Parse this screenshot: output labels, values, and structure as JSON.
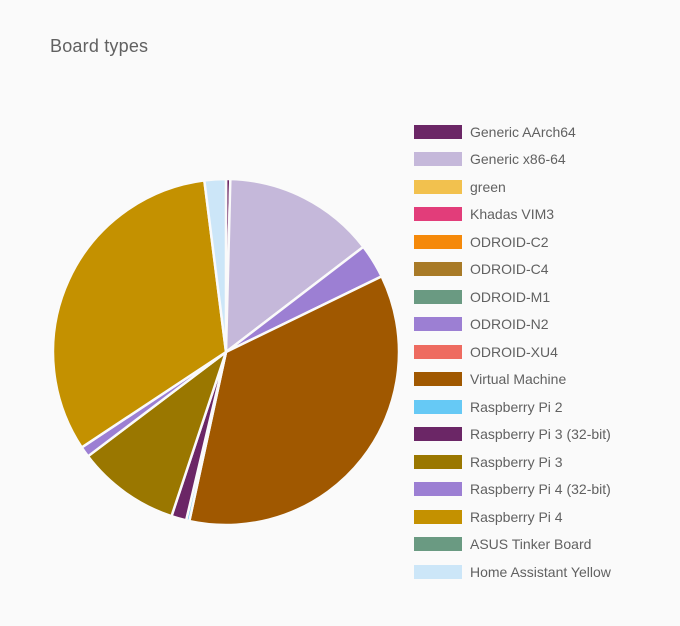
{
  "card": {
    "title": "Board types"
  },
  "chart_data": {
    "type": "pie",
    "title": "Board types",
    "legend_position": "right",
    "series": [
      {
        "name": "Generic AArch64",
        "value": 0.4,
        "color": "#6b2666"
      },
      {
        "name": "Generic x86-64",
        "value": 14.2,
        "color": "#c5b8da"
      },
      {
        "name": "green",
        "value": 0.0,
        "color": "#f2c14e"
      },
      {
        "name": "Khadas VIM3",
        "value": 0.0,
        "color": "#e23d7a"
      },
      {
        "name": "ODROID-C2",
        "value": 0.0,
        "color": "#f5890a"
      },
      {
        "name": "ODROID-C4",
        "value": 0.0,
        "color": "#a87a27"
      },
      {
        "name": "ODROID-M1",
        "value": 0.0,
        "color": "#6a9a82"
      },
      {
        "name": "ODROID-N2",
        "value": 3.2,
        "color": "#9c7fd3"
      },
      {
        "name": "ODROID-XU4",
        "value": 0.0,
        "color": "#ee6b60"
      },
      {
        "name": "Virtual Machine",
        "value": 35.6,
        "color": "#a05800"
      },
      {
        "name": "Raspberry Pi 2",
        "value": 0.3,
        "color": "#66c9f5"
      },
      {
        "name": "Raspberry Pi 3 (32-bit)",
        "value": 1.4,
        "color": "#6b2666"
      },
      {
        "name": "Raspberry Pi 3",
        "value": 9.6,
        "color": "#9a7700"
      },
      {
        "name": "Raspberry Pi 4 (32-bit)",
        "value": 1.0,
        "color": "#9c7fd3"
      },
      {
        "name": "Raspberry Pi 4",
        "value": 32.3,
        "color": "#c49100"
      },
      {
        "name": "ASUS Tinker Board",
        "value": 0.0,
        "color": "#6a9a82"
      },
      {
        "name": "Home Assistant Yellow",
        "value": 2.0,
        "color": "#cce6f8"
      }
    ]
  }
}
